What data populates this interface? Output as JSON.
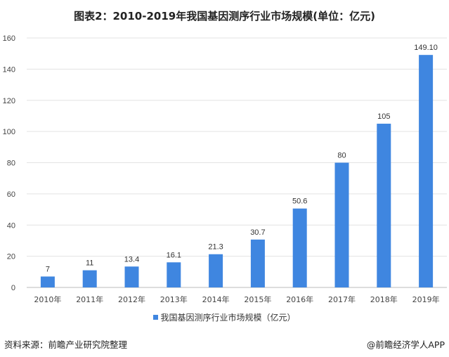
{
  "chart_data": {
    "type": "bar",
    "title": "图表2：2010-2019年我国基因测序行业市场规模(单位：亿元)",
    "categories": [
      "2010年",
      "2011年",
      "2012年",
      "2013年",
      "2014年",
      "2015年",
      "2016年",
      "2017年",
      "2018年",
      "2019年"
    ],
    "series": [
      {
        "name": "我国基因测序行业市场规模（亿元）",
        "values": [
          7,
          11,
          13.4,
          16.1,
          21.3,
          30.7,
          50.6,
          80,
          105,
          149.1
        ]
      }
    ],
    "value_labels": [
      "7",
      "11",
      "13.4",
      "16.1",
      "21.3",
      "30.7",
      "50.6",
      "80",
      "105",
      "149.10"
    ],
    "yticks": [
      0,
      20,
      40,
      60,
      80,
      100,
      120,
      140,
      160
    ],
    "ylim": [
      0,
      160
    ],
    "xlabel": "",
    "ylabel": "",
    "grid": true,
    "legend": "bottom-center",
    "bar_color": "#3f86e0"
  },
  "footer": {
    "source": "资料来源：前瞻产业研究院整理",
    "credit": "@前瞻经济学人APP"
  }
}
